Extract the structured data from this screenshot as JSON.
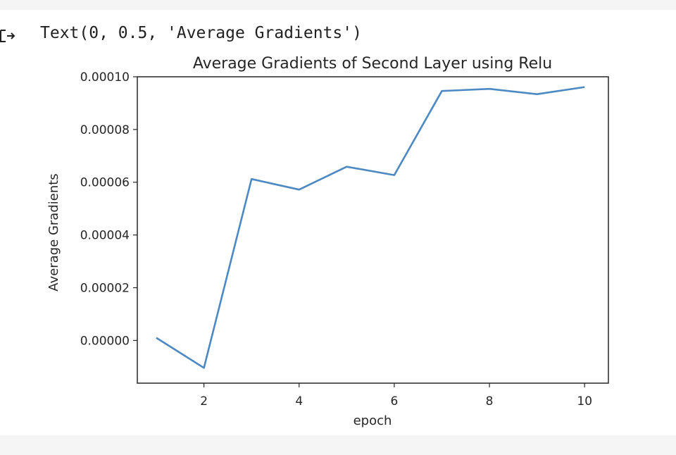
{
  "cell_output": {
    "text": "Text(0, 0.5, 'Average Gradients')",
    "icon": "output-arrow-icon"
  },
  "chart_data": {
    "type": "line",
    "title": "Average Gradients of Second Layer using Relu",
    "xlabel": "epoch",
    "ylabel": "Average Gradients",
    "series": [
      {
        "color": "#4c89c3",
        "x": [
          1,
          2,
          3,
          4,
          5,
          6,
          7,
          8,
          9,
          10
        ],
        "y": [
          1e-06,
          -1.04e-05,
          6.12e-05,
          5.72e-05,
          6.59e-05,
          6.27e-05,
          9.46e-05,
          9.54e-05,
          9.34e-05,
          9.61e-05
        ]
      }
    ],
    "xlim": [
      0.6,
      10.5
    ],
    "ylim": [
      -1.62e-05,
      0.0001
    ],
    "xticks": [
      2,
      4,
      6,
      8,
      10
    ],
    "xtick_labels": [
      "2",
      "4",
      "6",
      "8",
      "10"
    ],
    "yticks": [
      0,
      2e-05,
      4e-05,
      6e-05,
      8e-05,
      0.0001
    ],
    "ytick_labels": [
      "0.00000",
      "0.00002",
      "0.00004",
      "0.00006",
      "0.00008",
      "0.00010"
    ],
    "grid": false,
    "legend": "none"
  }
}
